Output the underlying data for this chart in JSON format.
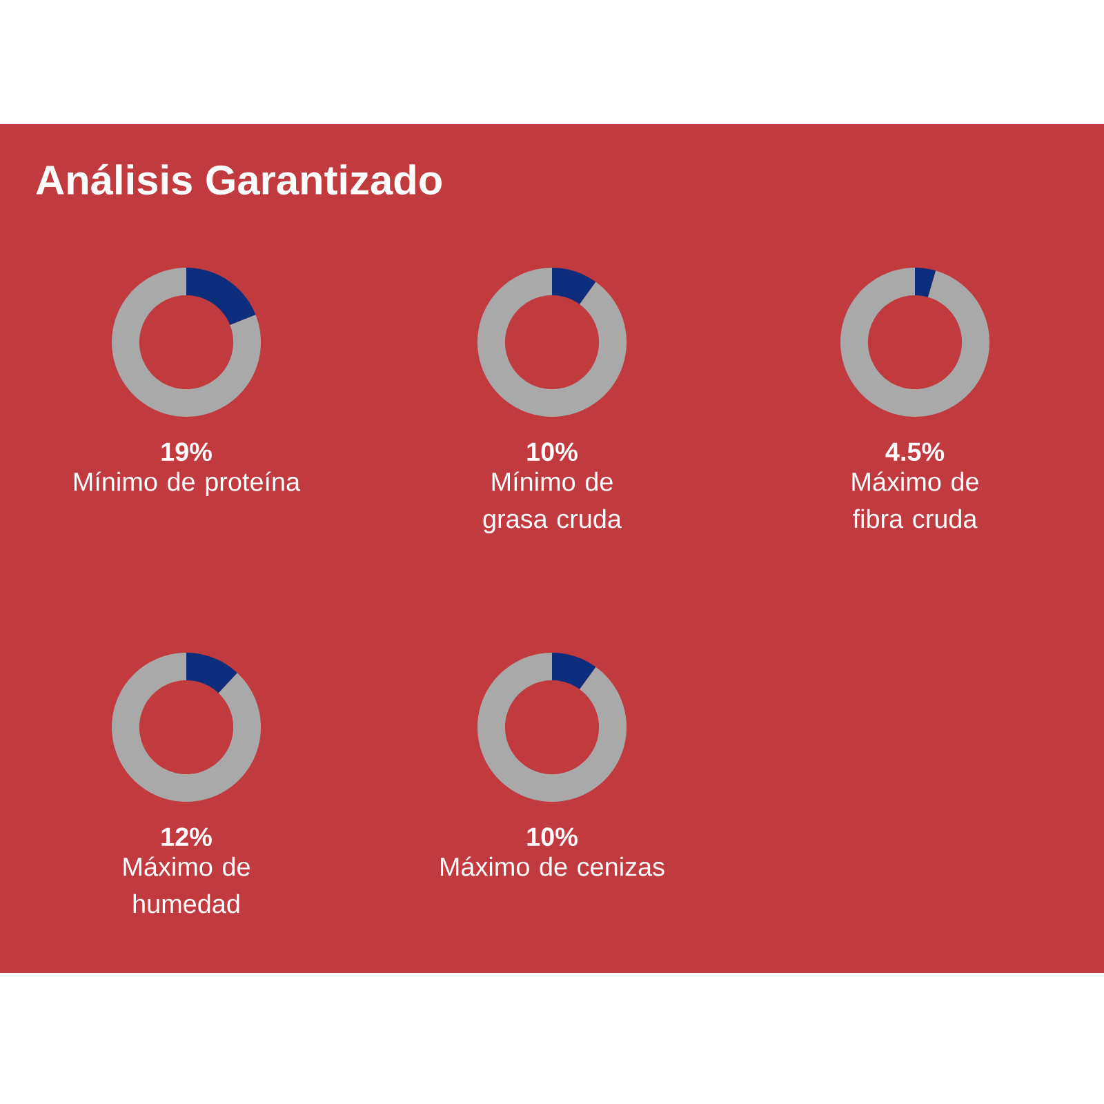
{
  "chart_data": [
    {
      "type": "other",
      "title": "Análisis Garantizado"
    },
    {
      "type": "donut",
      "title": "Mínimo de proteína",
      "categories": [
        null,
        null
      ],
      "values": [
        19,
        81
      ],
      "annotations": [
        "19%"
      ],
      "colors": [
        "#0b2d7c",
        "#a9a9a9"
      ]
    },
    {
      "type": "donut",
      "title": "Mínimo de grasa cruda",
      "categories": [
        null,
        null
      ],
      "values": [
        10,
        90
      ],
      "annotations": [
        "10%"
      ],
      "colors": [
        "#0b2d7c",
        "#a9a9a9"
      ]
    },
    {
      "type": "donut",
      "title": "Máximo de fibra cruda",
      "categories": [
        null,
        null
      ],
      "values": [
        4.5,
        95.5
      ],
      "annotations": [
        "4.5%"
      ],
      "colors": [
        "#0b2d7c",
        "#a9a9a9"
      ]
    },
    {
      "type": "donut",
      "title": "Máximo de humedad",
      "categories": [
        null,
        null
      ],
      "values": [
        12,
        88
      ],
      "annotations": [
        "12%"
      ],
      "colors": [
        "#0b2d7c",
        "#a9a9a9"
      ]
    },
    {
      "type": "donut",
      "title": "Máximo de cenizas",
      "categories": [
        null,
        null
      ],
      "values": [
        10,
        90
      ],
      "annotations": [
        "10%"
      ],
      "colors": [
        "#0b2d7c",
        "#a9a9a9"
      ]
    }
  ]
}
